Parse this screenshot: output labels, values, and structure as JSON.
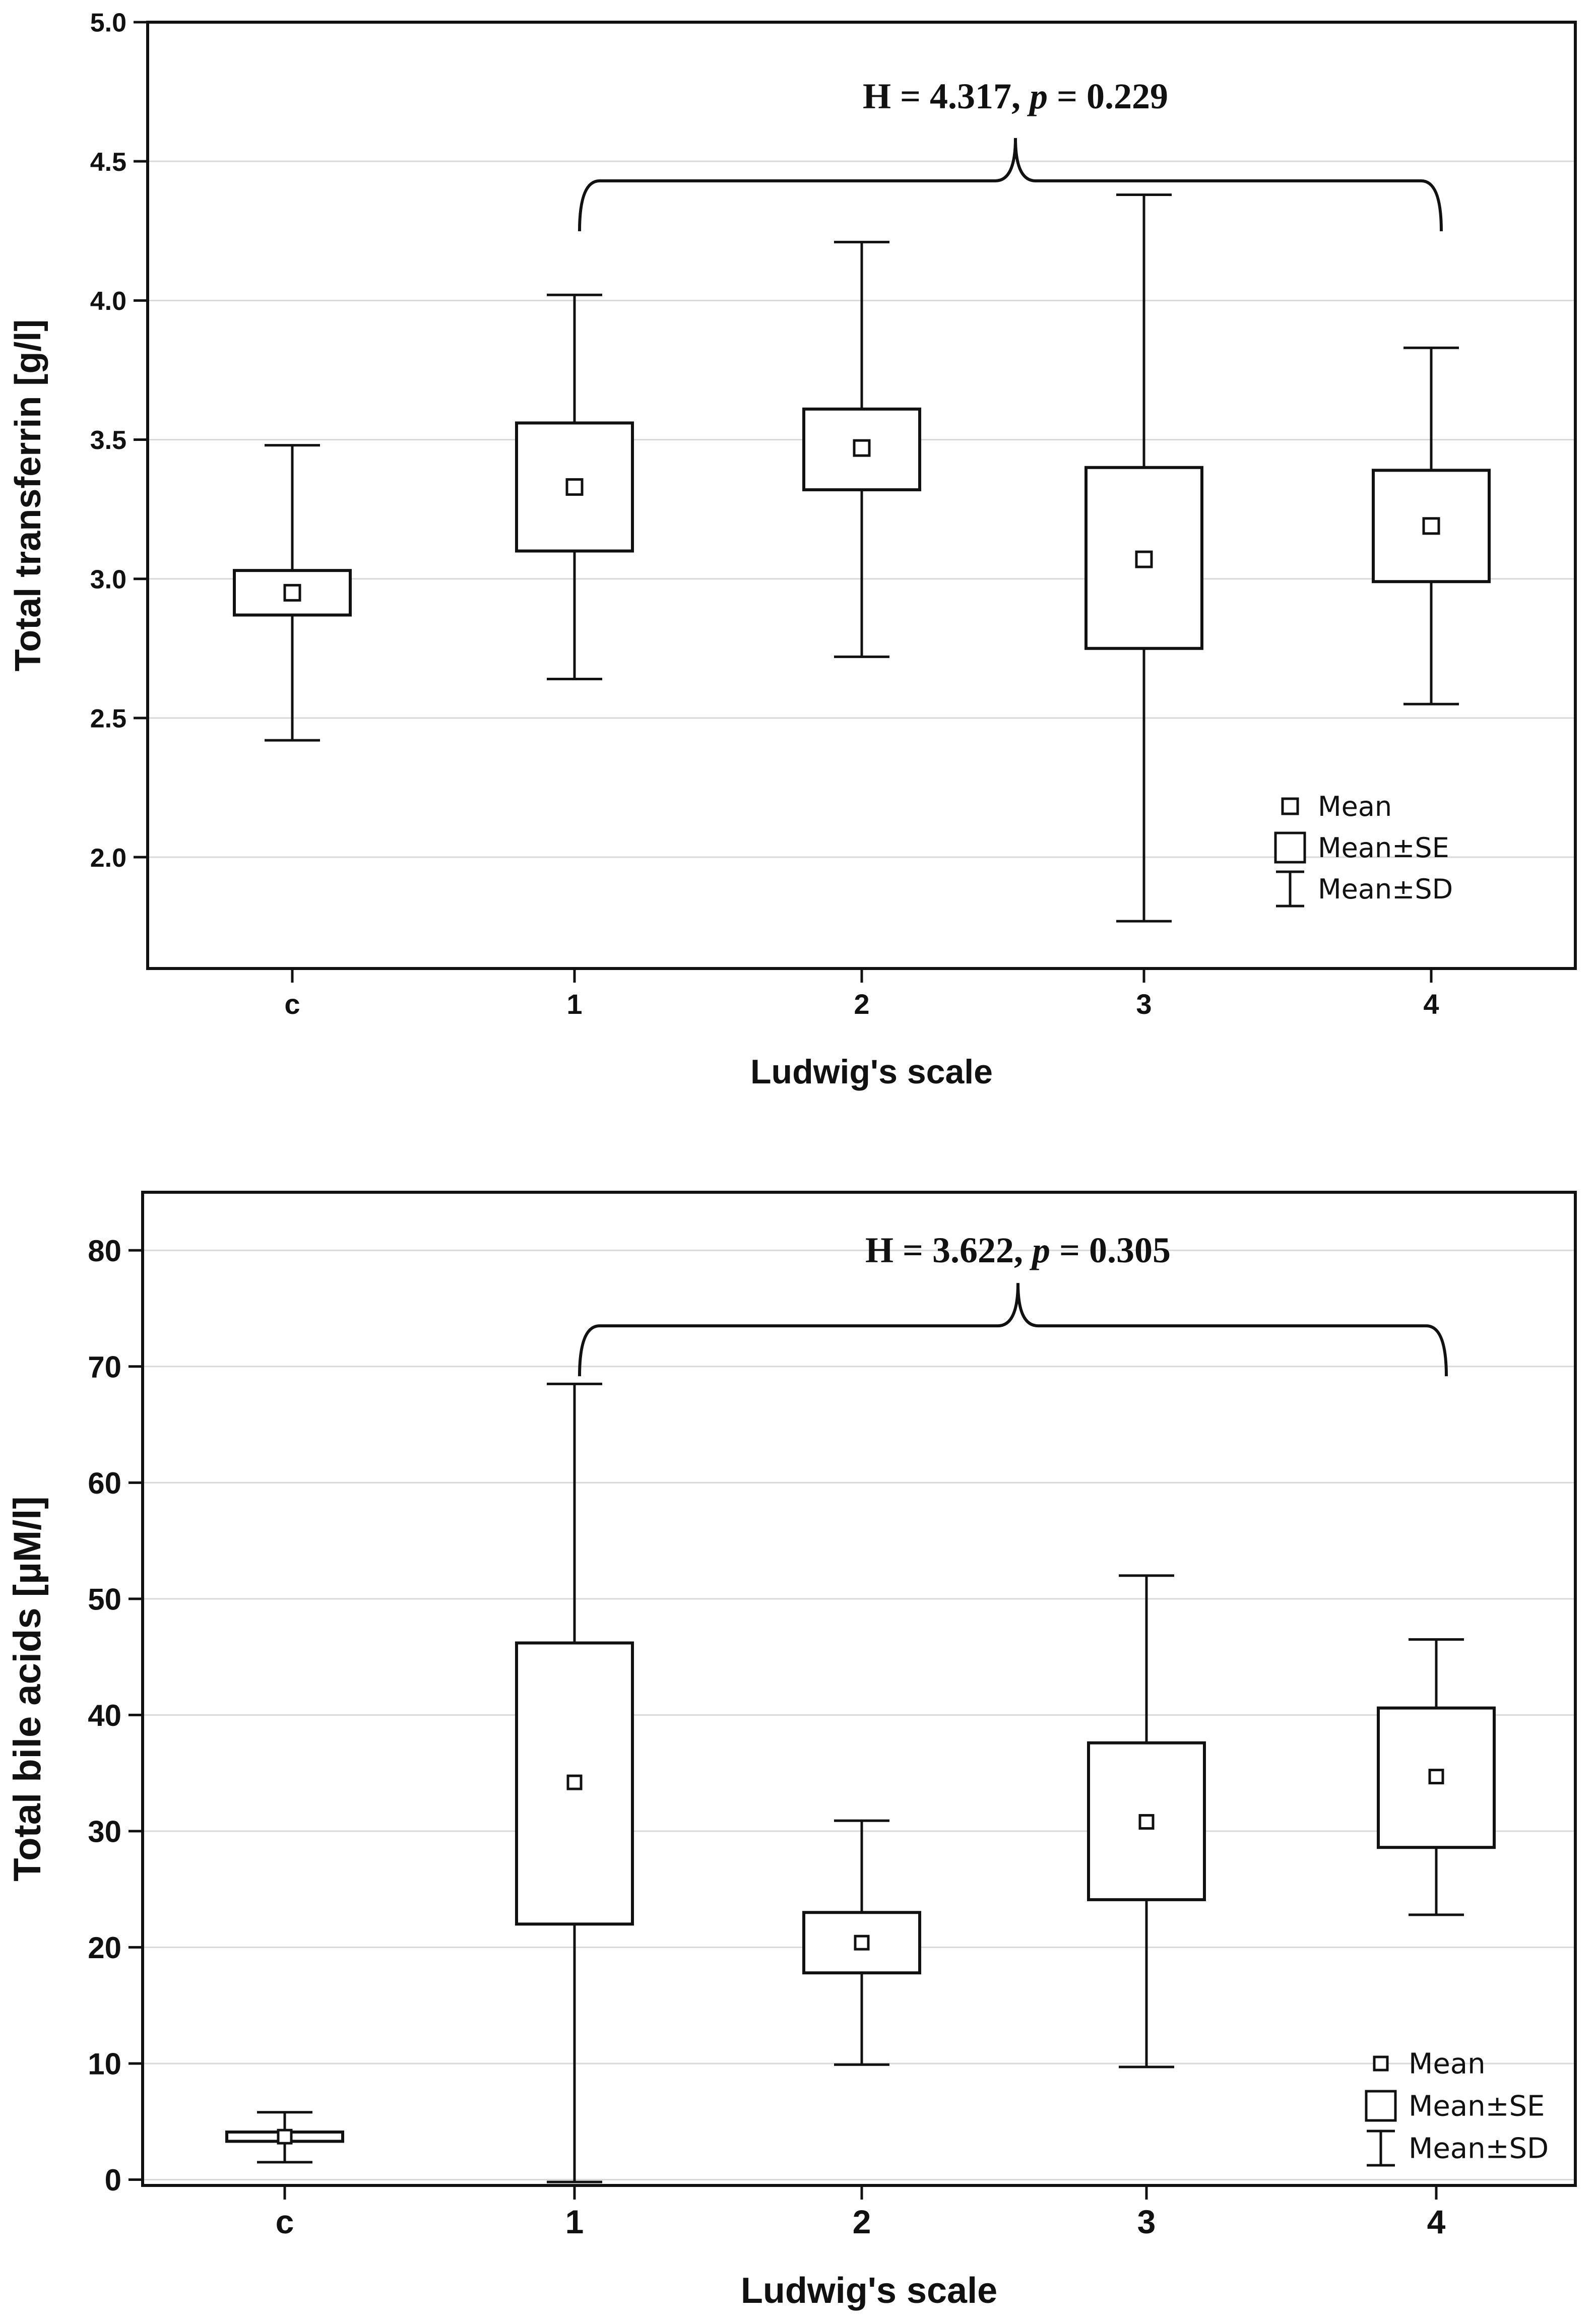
{
  "chart_data": [
    {
      "type": "box",
      "ylabel": "Total transferrin [g/l]",
      "xlabel": "Ludwig's scale",
      "categories": [
        "c",
        "1",
        "2",
        "3",
        "4"
      ],
      "ylim": [
        1.6,
        5.0
      ],
      "yticks": [
        2.0,
        2.5,
        3.0,
        3.5,
        4.0,
        4.5,
        5.0
      ],
      "ytick_labels": [
        "2.0",
        "2.5",
        "3.0",
        "3.5",
        "4.0",
        "4.5",
        "5.0"
      ],
      "mean": [
        2.95,
        3.33,
        3.47,
        3.07,
        3.19
      ],
      "se_low": [
        2.87,
        3.1,
        3.32,
        2.75,
        2.99
      ],
      "se_high": [
        3.03,
        3.56,
        3.61,
        3.4,
        3.39
      ],
      "sd_low": [
        2.42,
        2.64,
        2.72,
        1.77,
        2.55
      ],
      "sd_high": [
        3.48,
        4.02,
        4.21,
        4.38,
        3.83
      ],
      "grid": "horizontal",
      "annotation": {
        "prefix": "H = 4.317, ",
        "p_symbol": "p",
        "suffix": " = 0.229",
        "bracket_from": "1",
        "bracket_to": "4",
        "bracket_y": 4.43
      },
      "legend": {
        "placement": "bottom-right",
        "mean": "Mean",
        "se": "Mean±SE",
        "sd": "Mean±SD"
      }
    },
    {
      "type": "box",
      "ylabel": "Total bile acids [µM/l]",
      "xlabel": "Ludwig's scale",
      "categories": [
        "c",
        "1",
        "2",
        "3",
        "4"
      ],
      "ylim": [
        -0.5,
        85
      ],
      "yticks": [
        0,
        10,
        20,
        30,
        40,
        50,
        60,
        70,
        80
      ],
      "ytick_labels": [
        "0",
        "10",
        "20",
        "30",
        "40",
        "50",
        "60",
        "70",
        "80"
      ],
      "mean": [
        3.7,
        34.2,
        20.4,
        30.8,
        34.7
      ],
      "se_low": [
        3.3,
        22.0,
        17.8,
        24.1,
        28.6
      ],
      "se_high": [
        4.1,
        46.2,
        23.0,
        37.6,
        40.6
      ],
      "sd_low": [
        1.5,
        -0.2,
        9.9,
        9.7,
        22.8
      ],
      "sd_high": [
        5.8,
        68.5,
        30.9,
        52.0,
        46.5
      ],
      "grid": "horizontal",
      "annotation": {
        "prefix": "H = 3.622, ",
        "p_symbol": "p",
        "suffix": " = 0.305",
        "bracket_from": "1",
        "bracket_to": "4",
        "bracket_y": 73.5
      },
      "legend": {
        "placement": "bottom-right",
        "mean": "Mean",
        "se": "Mean±SE",
        "sd": "Mean±SD"
      }
    }
  ]
}
